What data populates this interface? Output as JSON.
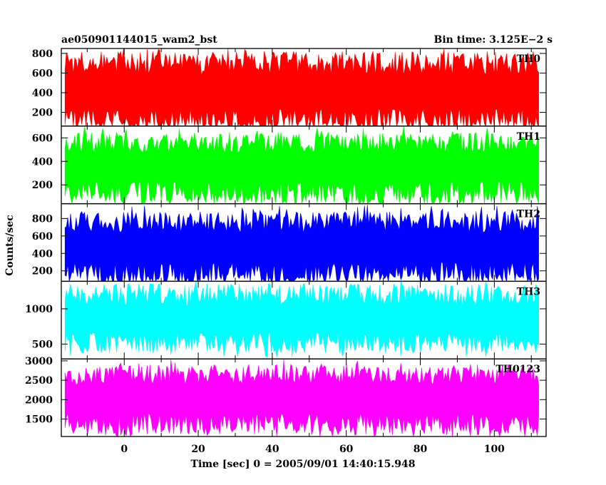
{
  "chart_data": {
    "type": "line",
    "title": "ae050901144015_wam2_bst",
    "bin_time_label": "Bin time: 3.125E−2 s",
    "xlabel": "Time [sec] 0 = 2005/09/01 14:40:15.948",
    "ylabel": "Counts/sec",
    "xlim": [
      -17,
      114
    ],
    "x_range": [
      -16,
      112
    ],
    "x_ticks": [
      0,
      20,
      40,
      60,
      80,
      100
    ],
    "x_tick_labels": [
      "0",
      "20",
      "40",
      "60",
      "80",
      "100"
    ],
    "panels": [
      {
        "name": "TH0",
        "color": "#ff0000",
        "ylim": [
          60,
          850
        ],
        "ticks": [
          200,
          400,
          600,
          800
        ],
        "tick_labels": [
          "200",
          "400",
          "600",
          "800"
        ],
        "mean": 430,
        "low": 100,
        "high": 700,
        "min": 70,
        "max": 850,
        "seed": 11
      },
      {
        "name": "TH1",
        "color": "#00ff00",
        "ylim": [
          40,
          700
        ],
        "ticks": [
          200,
          400,
          600
        ],
        "tick_labels": [
          "200",
          "400",
          "600"
        ],
        "mean": 370,
        "low": 120,
        "high": 560,
        "min": 50,
        "max": 700,
        "seed": 23
      },
      {
        "name": "TH2",
        "color": "#0000ff",
        "ylim": [
          80,
          970
        ],
        "ticks": [
          200,
          400,
          600,
          800
        ],
        "tick_labels": [
          "200",
          "400",
          "600",
          "800"
        ],
        "mean": 480,
        "low": 150,
        "high": 760,
        "min": 90,
        "max": 970,
        "seed": 37
      },
      {
        "name": "TH3",
        "color": "#00ffff",
        "ylim": [
          290,
          1390
        ],
        "ticks": [
          500,
          1000
        ],
        "tick_labels": [
          "500",
          "1000"
        ],
        "mean": 850,
        "low": 520,
        "high": 1200,
        "min": 300,
        "max": 1390,
        "seed": 41
      },
      {
        "name": "TH0123",
        "color": "#ff00ff",
        "ylim": [
          1050,
          3050
        ],
        "ticks": [
          1500,
          2000,
          2500,
          3000
        ],
        "tick_labels": [
          "1500",
          "2000",
          "2500",
          "3000"
        ],
        "mean": 2050,
        "low": 1350,
        "high": 2650,
        "min": 1100,
        "max": 3050,
        "seed": 53
      }
    ]
  }
}
